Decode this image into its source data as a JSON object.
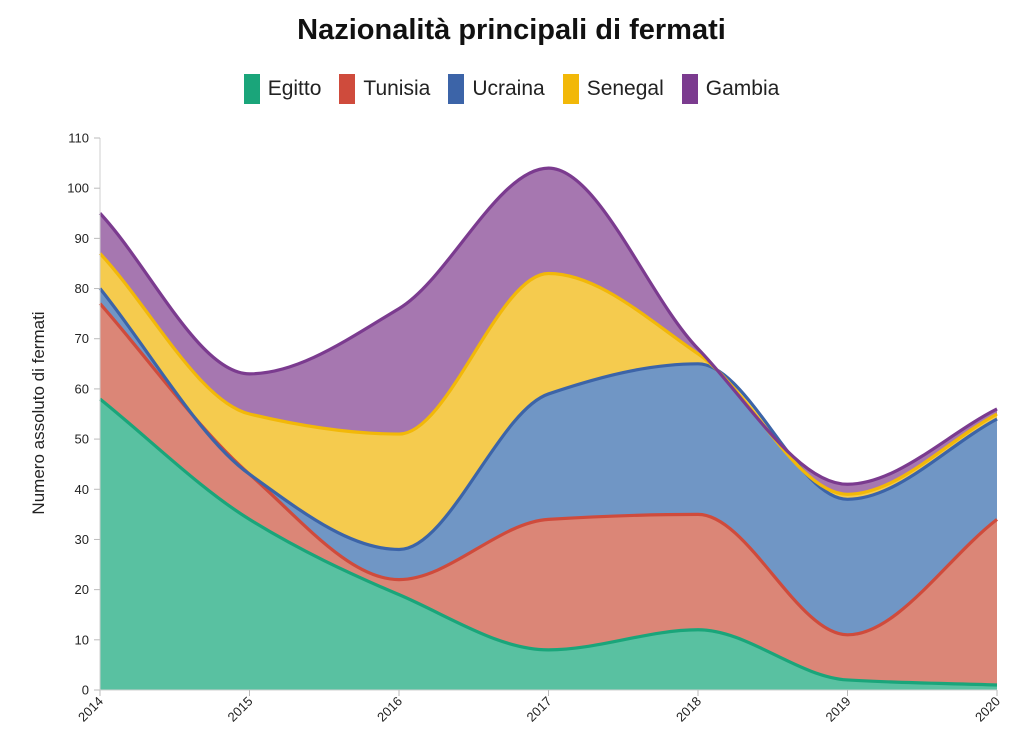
{
  "chart_data": {
    "type": "area",
    "stacked": true,
    "title": "Nazionalità principali di fermati",
    "xlabel": "",
    "ylabel": "Numero assoluto di fermati",
    "x": [
      "2014",
      "2015",
      "2016",
      "2017",
      "2018",
      "2019",
      "2020"
    ],
    "ylim": [
      0,
      110
    ],
    "yticks": [
      0,
      10,
      20,
      30,
      40,
      50,
      60,
      70,
      80,
      90,
      100,
      110
    ],
    "legend_position": "top-center",
    "grid": false,
    "series": [
      {
        "name": "Egitto",
        "color": "#1aa57a",
        "fill": "#59c1a1",
        "values": [
          58,
          34,
          19,
          8,
          12,
          2,
          1
        ]
      },
      {
        "name": "Tunisia",
        "color": "#cf4b3c",
        "fill": "#db8677",
        "values": [
          19,
          9,
          3,
          26,
          23,
          9,
          33
        ]
      },
      {
        "name": "Ucraina",
        "color": "#3c64a8",
        "fill": "#7096c5",
        "values": [
          3,
          0,
          6,
          25,
          30,
          27,
          20
        ]
      },
      {
        "name": "Senegal",
        "color": "#f2b808",
        "fill": "#f5cb4e",
        "values": [
          7,
          12,
          23,
          24,
          2,
          1,
          1
        ]
      },
      {
        "name": "Gambia",
        "color": "#7b3b8f",
        "fill": "#a677b0",
        "values": [
          8,
          8,
          25,
          21,
          1,
          2,
          1
        ]
      }
    ]
  }
}
